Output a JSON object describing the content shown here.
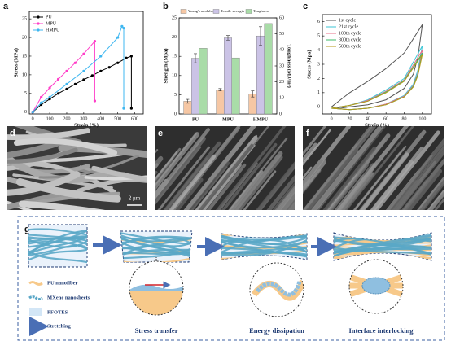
{
  "chart_data": [
    {
      "type": "line",
      "panel_label": "a",
      "x_label": "Strain (%)",
      "y_label": "Stress (MPa)",
      "xlim": [
        -20,
        650
      ],
      "ylim": [
        -0.5,
        27
      ],
      "xticks": [
        0,
        100,
        200,
        300,
        400,
        500,
        600
      ],
      "yticks": [
        0,
        5,
        10,
        15,
        20,
        25
      ],
      "legend": "upper left",
      "markers": true,
      "series": [
        {
          "name": "PU",
          "color": "#000000",
          "x": [
            0,
            50,
            100,
            150,
            200,
            250,
            300,
            350,
            400,
            450,
            500,
            550,
            580,
            580
          ],
          "values": [
            0,
            2,
            3.5,
            5,
            6.2,
            7.5,
            8.7,
            9.8,
            11,
            12,
            13.2,
            14.5,
            15,
            1
          ]
        },
        {
          "name": "MPU",
          "color": "#ff3ec8",
          "x": [
            0,
            50,
            100,
            150,
            200,
            250,
            300,
            365,
            365
          ],
          "values": [
            0,
            4,
            6.5,
            8.8,
            11,
            13.2,
            15.6,
            19,
            3
          ]
        },
        {
          "name": "HMPU",
          "color": "#3fb7f0",
          "x": [
            0,
            50,
            100,
            200,
            300,
            400,
            500,
            525,
            535,
            535
          ],
          "values": [
            0,
            2.5,
            4,
            7.5,
            11,
            15,
            20,
            23,
            22.5,
            1
          ]
        }
      ]
    },
    {
      "type": "bar",
      "panel_label": "b",
      "categories": [
        "PU",
        "MPU",
        "HMPU"
      ],
      "y_label": "Strength (Mpa)",
      "y2_label": "Toughness (MJ/m³)",
      "ylim": [
        0,
        25
      ],
      "yticks": [
        0,
        5,
        10,
        15,
        20,
        25
      ],
      "y2lim": [
        0,
        60
      ],
      "y2ticks": [
        0,
        10,
        20,
        30,
        40,
        50,
        60
      ],
      "legend": "top",
      "series": [
        {
          "name": "Young's modulus",
          "color": "#f6c7a4",
          "values": [
            3.3,
            6.3,
            5.2
          ],
          "errors": [
            0.5,
            0.3,
            0.8
          ]
        },
        {
          "name": "Tensile strength",
          "color": "#cbc3e6",
          "values": [
            14.5,
            19.8,
            20.3
          ],
          "errors": [
            1.2,
            0.6,
            2.4
          ]
        },
        {
          "name": "Toughness",
          "color": "#a9dca8",
          "axis": "y2",
          "values": [
            41,
            35,
            56.5
          ]
        }
      ]
    },
    {
      "type": "line",
      "panel_label": "c",
      "x_label": "Strain (%)",
      "y_label": "Stress (Mpa)",
      "xlim": [
        -10,
        110
      ],
      "ylim": [
        -0.5,
        6.5
      ],
      "xticks": [
        0,
        20,
        40,
        60,
        80,
        100
      ],
      "yticks": [
        0,
        1,
        2,
        3,
        4,
        5,
        6
      ],
      "legend": "upper left",
      "markers": false,
      "series": [
        {
          "name": "1st cycle",
          "color": "#555555",
          "x": [
            0,
            10,
            20,
            40,
            60,
            80,
            100,
            95,
            90,
            80,
            60,
            40,
            20,
            10,
            0
          ],
          "values": [
            0,
            0.5,
            1,
            1.8,
            2.7,
            3.8,
            5.8,
            3.5,
            2.3,
            1.3,
            0.5,
            0.15,
            0,
            -0.1,
            0
          ]
        },
        {
          "name": "21st cycle",
          "color": "#3cc6d6",
          "x": [
            0,
            20,
            40,
            60,
            80,
            100,
            95,
            90,
            80,
            60,
            40,
            20,
            0
          ],
          "values": [
            -0.1,
            0.1,
            0.5,
            1.2,
            2,
            4.3,
            2.6,
            1.6,
            0.8,
            0.2,
            -0.1,
            -0.2,
            -0.1
          ]
        },
        {
          "name": "100th cycle",
          "color": "#e8708a",
          "x": [
            0,
            20,
            40,
            60,
            80,
            100,
            95,
            90,
            80,
            60,
            40,
            20,
            0
          ],
          "values": [
            -0.1,
            0.1,
            0.45,
            1.1,
            1.9,
            4,
            2.4,
            1.5,
            0.75,
            0.2,
            -0.1,
            -0.2,
            -0.1
          ]
        },
        {
          "name": "300th cycle",
          "color": "#3dbb6a",
          "x": [
            0,
            20,
            40,
            60,
            80,
            100,
            95,
            90,
            80,
            60,
            40,
            20,
            0
          ],
          "values": [
            -0.1,
            0.1,
            0.4,
            1.05,
            1.85,
            3.8,
            2.3,
            1.45,
            0.7,
            0.15,
            -0.1,
            -0.2,
            -0.1
          ]
        },
        {
          "name": "500th cycle",
          "color": "#b59a1a",
          "x": [
            0,
            20,
            40,
            60,
            80,
            100,
            95,
            90,
            80,
            60,
            40,
            20,
            0
          ],
          "values": [
            -0.1,
            0.1,
            0.4,
            1,
            1.8,
            3.7,
            2.2,
            1.4,
            0.7,
            0.15,
            -0.1,
            -0.2,
            -0.1
          ]
        }
      ]
    }
  ],
  "images": [
    {
      "label": "d",
      "scale_bar": "2 μm"
    },
    {
      "label": "e"
    },
    {
      "label": "f"
    }
  ],
  "schematic": {
    "label": "g",
    "legend": [
      "PU nanofiber",
      "MXene nanosheets",
      "PFOTES",
      "Stretching"
    ],
    "captions": [
      "Stress transfer",
      "Energy dissipation",
      "Interface interlocking"
    ]
  }
}
